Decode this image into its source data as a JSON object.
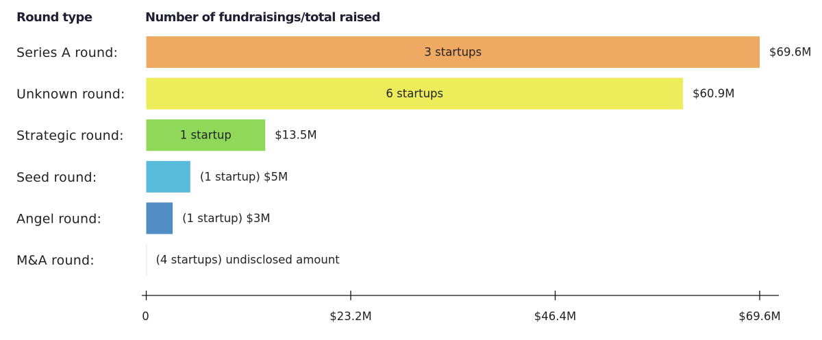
{
  "headers": {
    "left": "Round type",
    "right": "Number of fundraisings/total raised"
  },
  "chart_data": {
    "type": "bar",
    "orientation": "horizontal",
    "categories": [
      "Series A round:",
      "Unknown round:",
      "Strategic round:",
      "Seed round:",
      "Angel round:",
      "M&A round:"
    ],
    "values": [
      69.6,
      60.9,
      13.5,
      5,
      3,
      0
    ],
    "unit": "$M",
    "inside_labels": [
      "3 startups",
      "6 startups",
      "1 startup",
      "",
      "",
      ""
    ],
    "side_labels": [
      "$69.6M",
      "$60.9M",
      "$13.5M",
      "(1 startup) $5M",
      "(1 startup) $3M",
      "(4 startups) undisclosed amount"
    ],
    "colors": [
      "#eea963",
      "#eded5b",
      "#8fd85a",
      "#58bbd9",
      "#518dc4",
      "#e2e2e2"
    ],
    "x_ticks": [
      0,
      23.2,
      46.4,
      69.6
    ],
    "x_tick_labels": [
      "0",
      "$23.2M",
      "$46.4M",
      "$69.6M"
    ],
    "xlim": [
      0,
      69.6
    ],
    "grid": false,
    "legend": "none"
  }
}
